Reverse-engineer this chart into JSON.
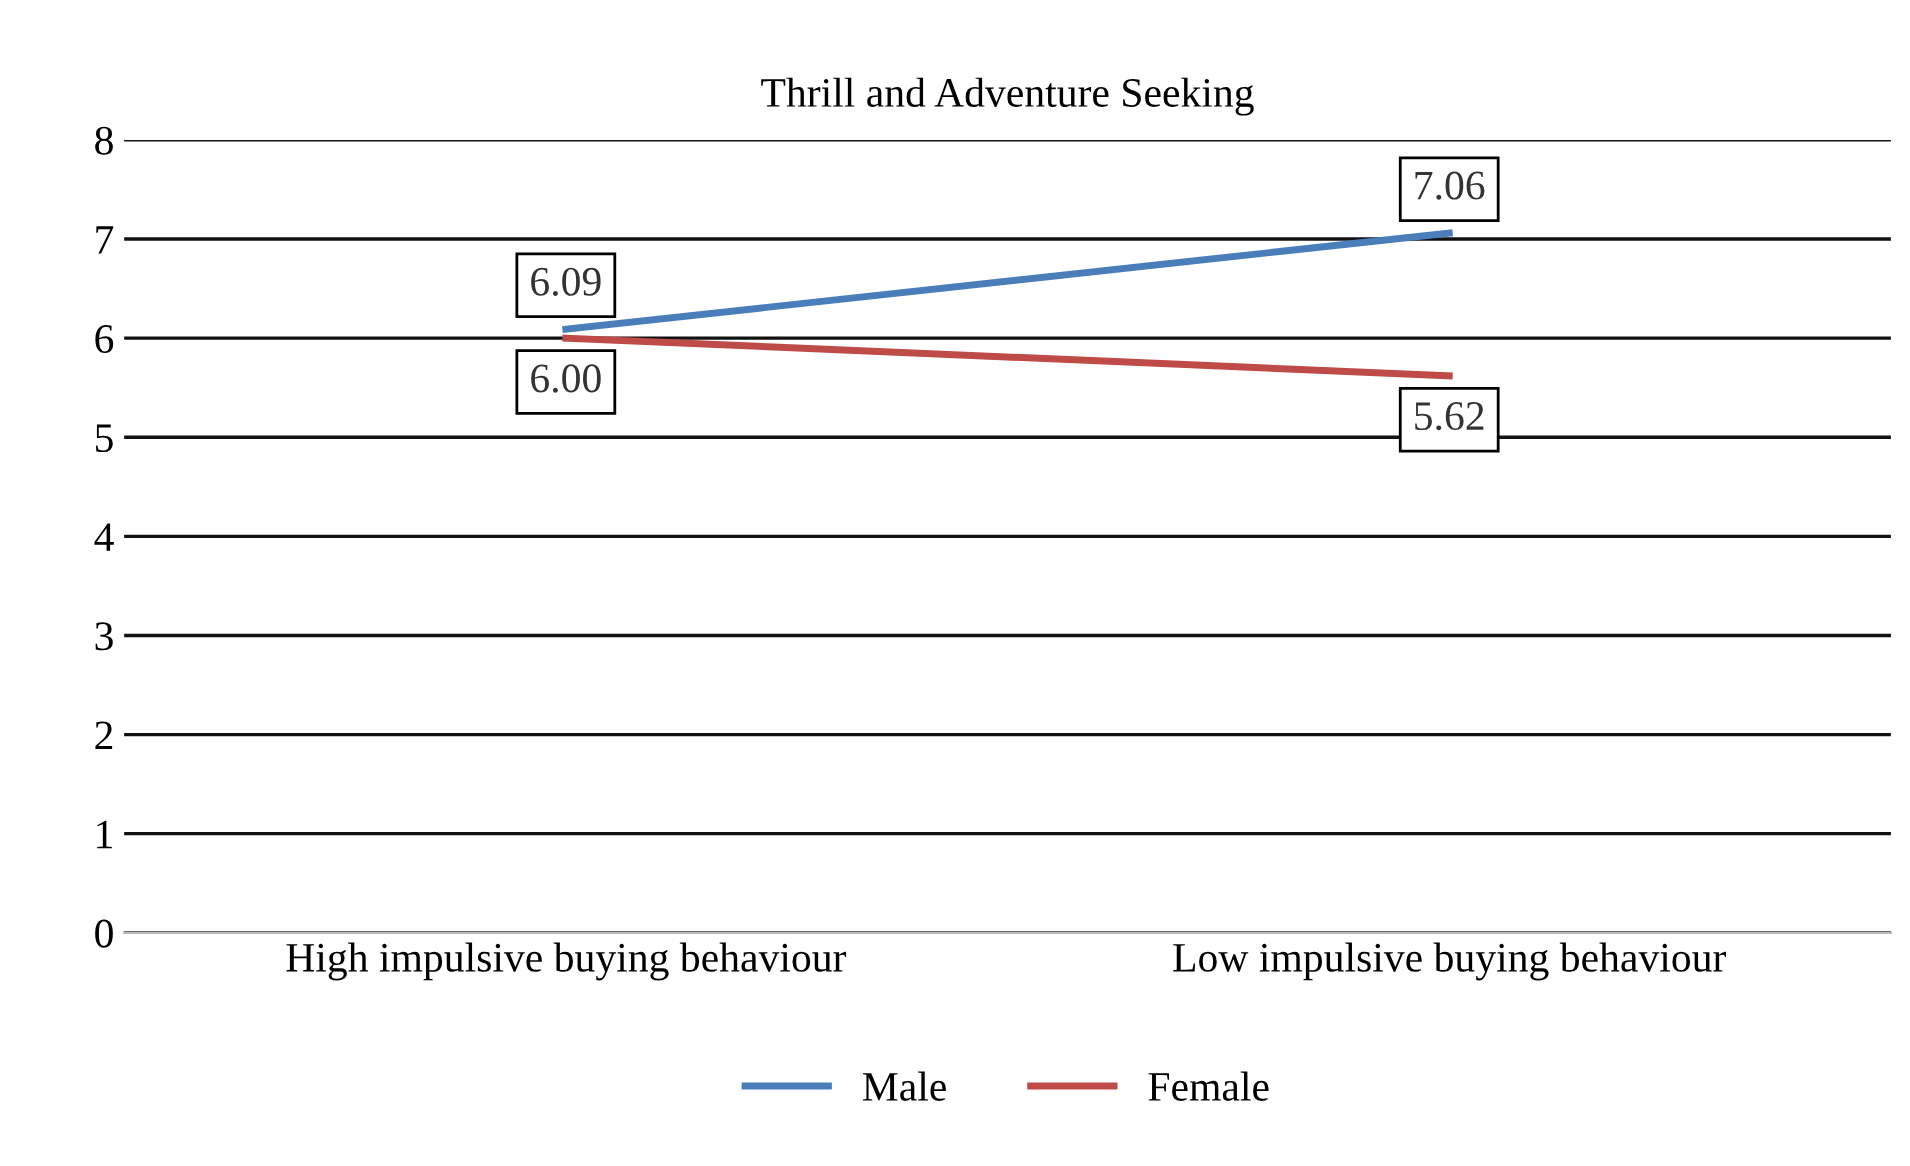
{
  "chart_data": {
    "type": "line",
    "title": "Thrill and Adventure Seeking",
    "categories": [
      "High impulsive buying behaviour",
      "Low impulsive buying behaviour"
    ],
    "series": [
      {
        "name": "Male",
        "color": "#4a7ebb",
        "values": [
          6.09,
          7.06
        ],
        "value_labels": [
          "6.09",
          "7.06"
        ]
      },
      {
        "name": "Female",
        "color": "#be4b48",
        "values": [
          6.0,
          5.62
        ],
        "value_labels": [
          "6.00",
          "5.62"
        ]
      }
    ],
    "ylim": [
      0,
      8
    ],
    "yticks": [
      0,
      1,
      2,
      3,
      4,
      5,
      6,
      7,
      8
    ],
    "grid": "y",
    "legend": "bottom",
    "marker": "none",
    "line_style": "solid"
  }
}
